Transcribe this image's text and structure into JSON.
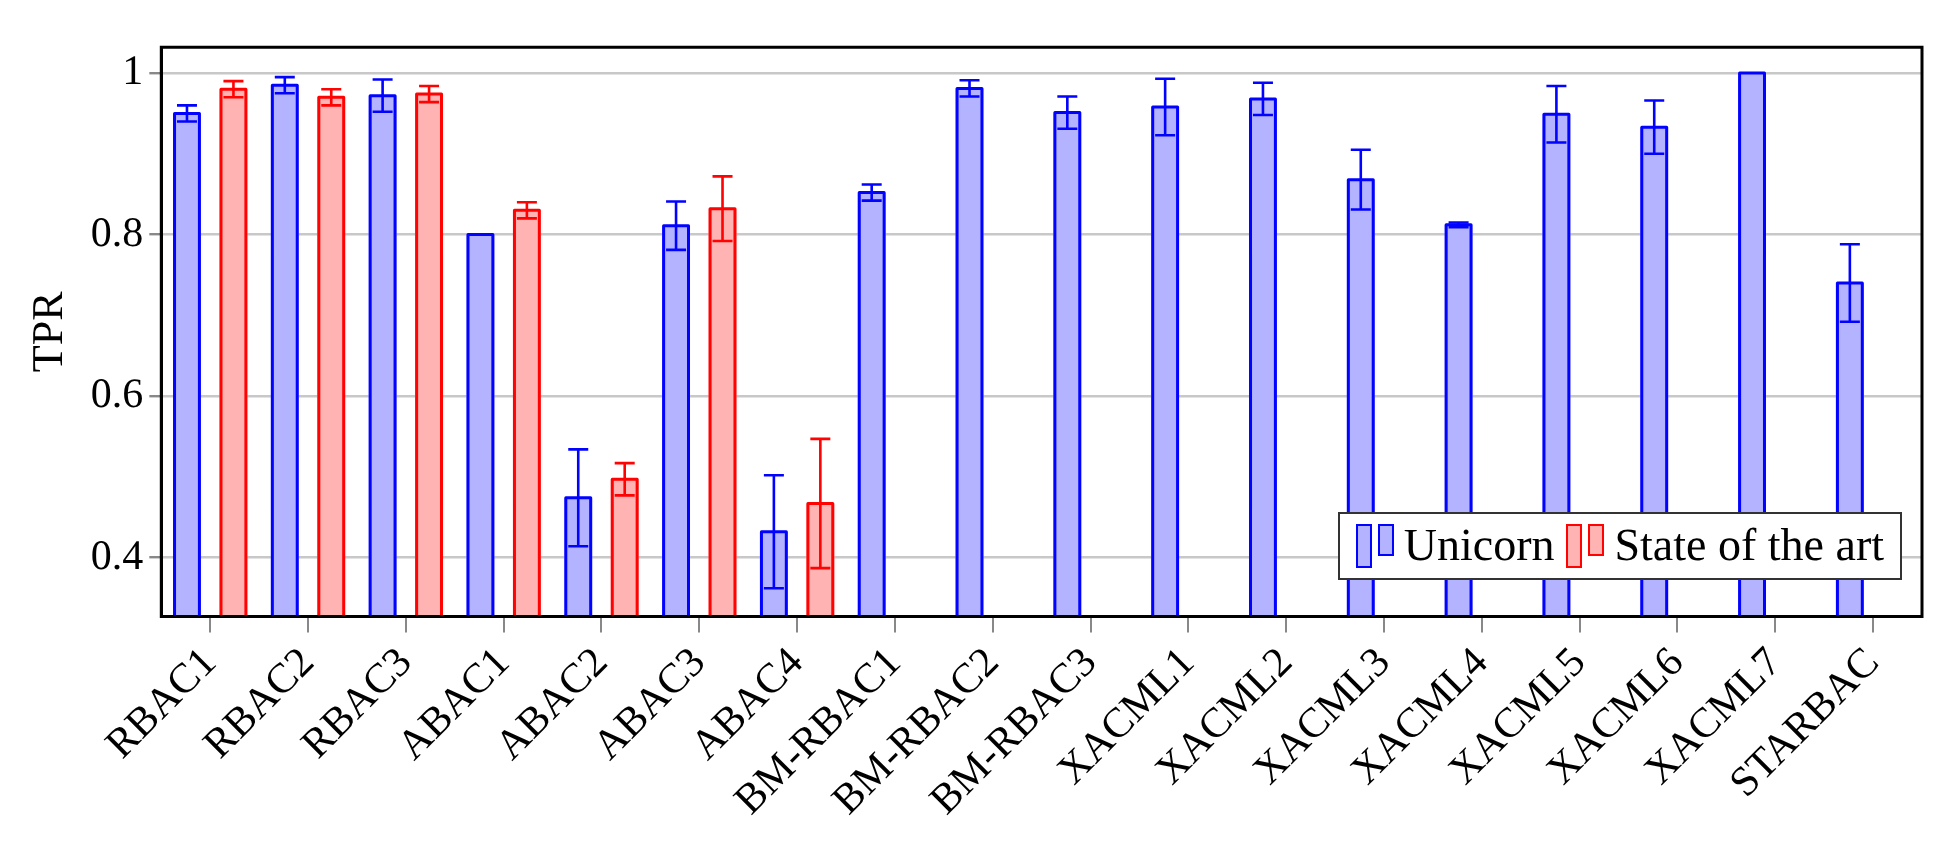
{
  "chart_data": {
    "type": "bar",
    "ylabel": "TPR",
    "categories": [
      "RBAC1",
      "RBAC2",
      "RBAC3",
      "ABAC1",
      "ABAC2",
      "ABAC3",
      "ABAC4",
      "BM-RBAC1",
      "BM-RBAC2",
      "BM-RBAC3",
      "XACML1",
      "XACML2",
      "XACML3",
      "XACML4",
      "XACML5",
      "XACML6",
      "XACML7",
      "STARBAC"
    ],
    "series": [
      {
        "name": "Unicorn",
        "color": "#b3b3ff",
        "values": [
          0.95,
          0.985,
          0.972,
          0.8,
          0.474,
          0.811,
          0.432,
          0.852,
          0.981,
          0.951,
          0.958,
          0.968,
          0.868,
          0.812,
          0.949,
          0.933,
          1.0,
          0.74
        ],
        "errors": [
          0.01,
          0.01,
          0.02,
          null,
          0.06,
          0.03,
          0.07,
          0.01,
          0.01,
          0.02,
          0.035,
          0.02,
          0.037,
          0.003,
          0.035,
          0.033,
          null,
          0.048
        ]
      },
      {
        "name": "State of the art",
        "color": "#ffb3b3",
        "values": [
          0.98,
          0.97,
          0.974,
          0.83,
          0.497,
          0.832,
          0.467,
          null,
          null,
          null,
          null,
          null,
          null,
          null,
          null,
          null,
          null,
          null
        ],
        "errors": [
          0.01,
          0.01,
          0.01,
          0.01,
          0.02,
          0.04,
          0.08,
          null,
          null,
          null,
          null,
          null,
          null,
          null,
          null,
          null,
          null,
          null
        ]
      }
    ],
    "ylim": [
      0.327,
      1.032
    ],
    "yticks": [
      0.4,
      0.6,
      0.8,
      1
    ],
    "grid": "y",
    "legend": "bottom right"
  }
}
